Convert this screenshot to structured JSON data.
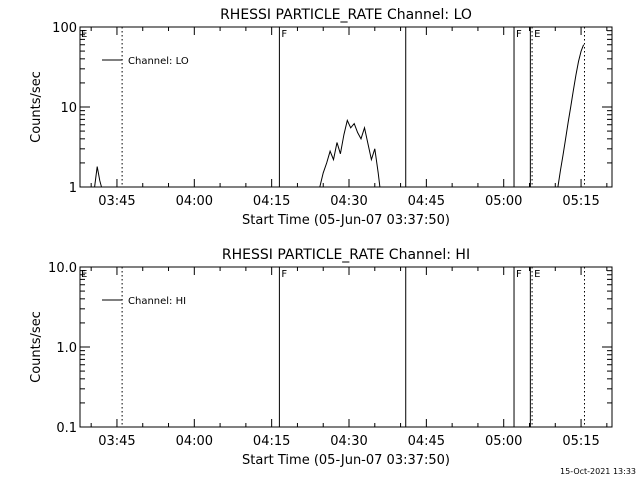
{
  "timestamp": "15-Oct-2021 13:33",
  "chart_data": [
    {
      "type": "line",
      "title": "RHESSI PARTICLE_RATE Channel: LO",
      "xlabel": "Start Time (05-Jun-07 03:37:50)",
      "ylabel": "Counts/sec",
      "yscale": "log",
      "xlim": [
        "03:37:50",
        "05:21:00"
      ],
      "ylim": [
        1,
        100
      ],
      "grid": false,
      "legend_position": "top-left",
      "x_ticks": [
        "03:45",
        "04:00",
        "04:15",
        "04:30",
        "04:45",
        "05:00",
        "05:15"
      ],
      "y_ticks": [
        "1",
        "10",
        "100"
      ],
      "markers": [
        {
          "time": "03:37:50",
          "style": "label",
          "label": "E"
        },
        {
          "time": "03:46:00",
          "style": "dotted",
          "label": ""
        },
        {
          "time": "04:16:30",
          "style": "solid",
          "label": "F"
        },
        {
          "time": "04:41:00",
          "style": "solid",
          "label": ""
        },
        {
          "time": "05:02:00",
          "style": "solid",
          "label": "F"
        },
        {
          "time": "05:05:10",
          "style": "solid",
          "label": ""
        },
        {
          "time": "05:05:30",
          "style": "dotted",
          "label": "E"
        },
        {
          "time": "05:15:40",
          "style": "dotted",
          "label": ""
        }
      ],
      "series": [
        {
          "name": "Channel: LO",
          "segments": [
            {
              "x": [
                "03:40:40",
                "03:41:10",
                "03:41:40",
                "03:42:00"
              ],
              "y": [
                1.0,
                1.8,
                1.2,
                1.0
              ]
            },
            {
              "x": [
                "04:24:20",
                "04:25:00",
                "04:25:40",
                "04:26:20",
                "04:27:00",
                "04:27:40",
                "04:28:20",
                "04:29:00",
                "04:29:40",
                "04:30:20",
                "04:31:00",
                "04:31:40",
                "04:32:20",
                "04:33:00",
                "04:33:40",
                "04:34:20",
                "04:35:00",
                "04:35:40",
                "04:36:00"
              ],
              "y": [
                1.0,
                1.5,
                2.0,
                2.8,
                2.2,
                3.6,
                2.6,
                4.5,
                6.8,
                5.5,
                6.2,
                4.8,
                4.0,
                5.5,
                3.5,
                2.2,
                3.0,
                1.5,
                1.0
              ]
            },
            {
              "x": [
                "05:10:30",
                "05:11:00",
                "05:11:30",
                "05:12:00",
                "05:12:30",
                "05:13:00",
                "05:13:30",
                "05:14:00",
                "05:14:30",
                "05:15:00",
                "05:15:30"
              ],
              "y": [
                1.0,
                1.6,
                2.5,
                4.0,
                6.5,
                10,
                16,
                25,
                37,
                50,
                60
              ]
            }
          ]
        }
      ]
    },
    {
      "type": "line",
      "title": "RHESSI PARTICLE_RATE Channel: HI",
      "xlabel": "Start Time (05-Jun-07 03:37:50)",
      "ylabel": "Counts/sec",
      "yscale": "log",
      "xlim": [
        "03:37:50",
        "05:21:00"
      ],
      "ylim": [
        0.1,
        10
      ],
      "grid": false,
      "legend_position": "top-left",
      "x_ticks": [
        "03:45",
        "04:00",
        "04:15",
        "04:30",
        "04:45",
        "05:00",
        "05:15"
      ],
      "y_ticks": [
        "0.1",
        "1.0",
        "10.0"
      ],
      "markers": [
        {
          "time": "03:37:50",
          "style": "label",
          "label": "E"
        },
        {
          "time": "03:46:00",
          "style": "dotted",
          "label": ""
        },
        {
          "time": "04:16:30",
          "style": "solid",
          "label": "F"
        },
        {
          "time": "04:41:00",
          "style": "solid",
          "label": ""
        },
        {
          "time": "05:02:00",
          "style": "solid",
          "label": "F"
        },
        {
          "time": "05:05:10",
          "style": "solid",
          "label": ""
        },
        {
          "time": "05:05:30",
          "style": "dotted",
          "label": "E"
        },
        {
          "time": "05:15:40",
          "style": "dotted",
          "label": ""
        }
      ],
      "series": [
        {
          "name": "Channel: HI",
          "segments": []
        }
      ]
    }
  ]
}
